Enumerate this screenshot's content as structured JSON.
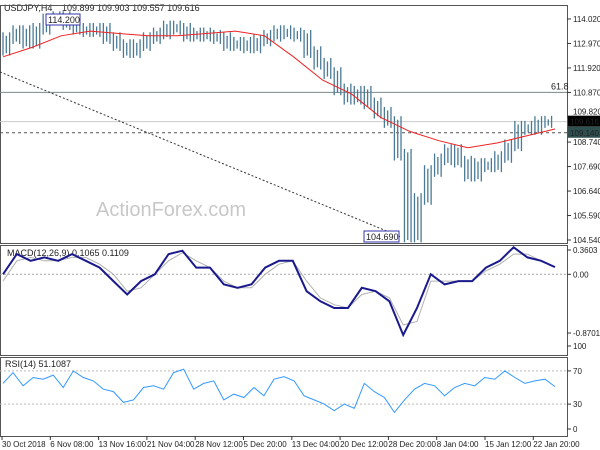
{
  "chart_data": [
    {
      "type": "ohlc",
      "title": "USDJPY,H4",
      "ohlc_header": "109.899 109.903 109.557 109.616",
      "ylim": [
        104.54,
        114.02
      ],
      "y_ticks": [
        "114.020",
        "112.970",
        "111.920",
        "110.870",
        "109.820",
        "108.740",
        "107.690",
        "106.640",
        "105.590",
        "104.540"
      ],
      "y_tick_values": [
        114.02,
        112.97,
        111.92,
        110.87,
        109.82,
        108.74,
        107.69,
        106.64,
        105.59,
        104.54
      ],
      "close": [
        112.7,
        113.2,
        113.5,
        113.0,
        113.6,
        114.0,
        114.1,
        113.8,
        113.6,
        113.5,
        113.6,
        113.2,
        112.9,
        112.6,
        112.9,
        113.2,
        113.4,
        113.7,
        113.6,
        113.3,
        113.4,
        113.3,
        113.2,
        112.9,
        113.0,
        112.8,
        113.1,
        113.3,
        113.5,
        113.4,
        113.3,
        112.6,
        112.1,
        111.7,
        111.0,
        110.6,
        110.9,
        110.4,
        110.0,
        109.6,
        108.2,
        104.69,
        106.3,
        107.5,
        108.0,
        108.4,
        107.9,
        107.3,
        107.8,
        107.7,
        108.1,
        108.6,
        109.4,
        109.3,
        109.6,
        109.616
      ],
      "moving_average": [
        112.4,
        112.8,
        113.3,
        113.5,
        113.4,
        113.3,
        113.3,
        113.4,
        113.5,
        113.3,
        112.4,
        111.4,
        110.8,
        109.8,
        109.2,
        108.8,
        108.5,
        108.7,
        109.0,
        109.3
      ],
      "last_price_label": "109.616",
      "level_label": "109.140",
      "level_value": 109.14,
      "fib_level_value": 110.87,
      "fib_label": "61.8",
      "high_label": "114.200",
      "low_label": "104.690",
      "trendline": [
        111.75,
        104.69
      ],
      "watermark": "ActionForex.com",
      "colors": {
        "bars": "#4a7a96",
        "ma": "#ee2222",
        "label_box": "#3333aa",
        "last_price_bg": "#000000",
        "level_bg": "#2f4f4f"
      }
    },
    {
      "type": "line",
      "title": "MACD(12,26,9) 0.1065 0.1109",
      "ylim": [
        -0.8701,
        0.3603
      ],
      "y_ticks": [
        "0.3603",
        "0.00",
        "-0.8701"
      ],
      "y_tick_values": [
        0.3603,
        0,
        -0.8701
      ],
      "macd": [
        0.0,
        0.3,
        0.2,
        0.25,
        0.2,
        0.3,
        0.2,
        0.1,
        -0.1,
        -0.3,
        -0.1,
        0.0,
        0.3,
        0.35,
        0.1,
        0.1,
        -0.15,
        -0.2,
        -0.15,
        0.1,
        0.2,
        0.2,
        -0.25,
        -0.4,
        -0.5,
        -0.5,
        -0.2,
        -0.25,
        -0.4,
        -0.9,
        -0.5,
        0.0,
        -0.15,
        -0.1,
        -0.1,
        0.1,
        0.2,
        0.4,
        0.25,
        0.2,
        0.1065
      ],
      "signal": [
        -0.1,
        0.2,
        0.25,
        0.2,
        0.2,
        0.25,
        0.25,
        0.15,
        0.0,
        -0.25,
        -0.2,
        0.0,
        0.2,
        0.32,
        0.2,
        0.1,
        -0.1,
        -0.2,
        -0.2,
        0.0,
        0.15,
        0.2,
        -0.1,
        -0.35,
        -0.45,
        -0.5,
        -0.3,
        -0.25,
        -0.35,
        -0.75,
        -0.7,
        -0.1,
        -0.1,
        -0.1,
        -0.1,
        0.05,
        0.15,
        0.3,
        0.3,
        0.2,
        0.1109
      ],
      "colors": {
        "macd": "#1a1a8c",
        "signal": "#b0b0b0"
      }
    },
    {
      "type": "line",
      "title": "RSI(14) 51.1087",
      "ylim": [
        0,
        100
      ],
      "y_ticks": [
        "100",
        "70",
        "30",
        "0"
      ],
      "y_tick_values": [
        100,
        70,
        30,
        0
      ],
      "rsi": [
        55,
        68,
        52,
        62,
        60,
        65,
        50,
        70,
        62,
        58,
        48,
        45,
        32,
        35,
        50,
        52,
        48,
        68,
        72,
        48,
        55,
        58,
        35,
        42,
        38,
        50,
        40,
        60,
        63,
        58,
        40,
        35,
        30,
        22,
        30,
        25,
        55,
        45,
        38,
        20,
        35,
        48,
        55,
        52,
        40,
        50,
        55,
        52,
        62,
        60,
        70,
        62,
        55,
        58,
        60,
        51.1
      ],
      "colors": {
        "rsi": "#3399ff"
      }
    }
  ],
  "x_ticks": [
    "30 Oct 2018",
    "6 Nov 08:00",
    "13 Nov 16:00",
    "21 Nov 04:00",
    "28 Nov 12:00",
    "5 Dec 20:00",
    "13 Dec 04:00",
    "20 Dec 12:00",
    "28 Dec 20:00",
    "8 Jan 04:00",
    "15 Jan 12:00",
    "22 Jan 20:00"
  ]
}
